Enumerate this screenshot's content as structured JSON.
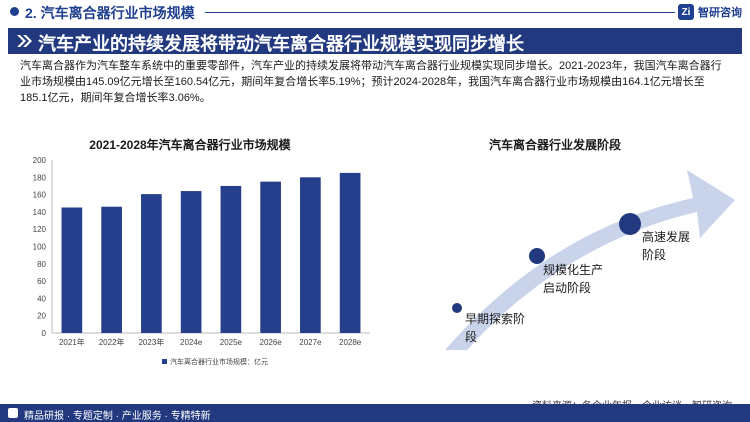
{
  "header": {
    "section_title": "2. 汽车离合器行业市场规模",
    "brand": "智研咨询"
  },
  "banner": {
    "title": "汽车产业的持续发展将带动汽车离合器行业规模实现同步增长"
  },
  "paragraph": "汽车离合器作为汽车整车系统中的重要零部件，汽车产业的持续发展将带动汽车离合器行业规模实现同步增长。2021-2023年，我国汽车离合器行业市场规模由145.09亿元增长至160.54亿元，期间年复合增长率5.19%；预计2024-2028年，我国汽车离合器行业市场规模由164.1亿元增长至185.1亿元，期间年复合增长率3.06%。",
  "stages": {
    "title": "汽车离合器行业发展阶段",
    "items": [
      {
        "line1": "早期探索阶",
        "line2": "段"
      },
      {
        "line1": "规模化生产",
        "line2": "启动阶段"
      },
      {
        "line1": "高速发展",
        "line2": "阶段"
      }
    ]
  },
  "source": "资料来源：各企业年报、企业访谈、智研咨询",
  "footer": "精品研报 · 专题定制 · 产业服务 · 专精特新",
  "colors": {
    "accent": "#22397f",
    "bar": "#263f8c",
    "arrow": "#c9d3ea"
  },
  "chart_data": {
    "type": "bar",
    "title": "2021-2028年汽车离合器行业市场规模",
    "categories": [
      "2021年",
      "2022年",
      "2023年",
      "2024e",
      "2025e",
      "2026e",
      "2027e",
      "2028e"
    ],
    "series": [
      {
        "name": "汽车离合器行业市场规模：亿元",
        "values": [
          145.09,
          146,
          160.54,
          164.1,
          170,
          175,
          180,
          185.1
        ]
      }
    ],
    "yticks": [
      0,
      20,
      40,
      60,
      80,
      100,
      120,
      140,
      160,
      180,
      200
    ],
    "ylim": [
      0,
      200
    ],
    "grid": false,
    "legend": "bottom"
  }
}
